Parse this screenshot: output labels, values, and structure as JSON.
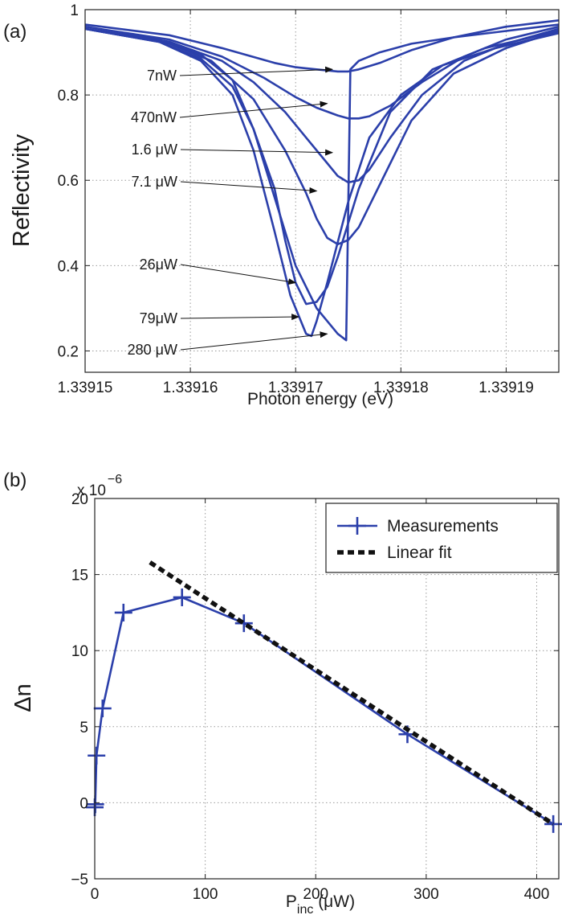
{
  "colors": {
    "series": "#2b3faa",
    "fit": "#111111",
    "grid": "#9a9a9a",
    "axis": "#222222"
  },
  "chart_data": [
    {
      "panel_label": "(a)",
      "type": "line",
      "xlabel": "Photon energy (eV)",
      "ylabel": "Reflectivity",
      "xlim": [
        1.33915,
        1.339195
      ],
      "ylim": [
        0.15,
        1.0
      ],
      "xticks": [
        1.33915,
        1.33916,
        1.33917,
        1.33918,
        1.33919
      ],
      "xtick_labels": [
        "1.33915",
        "1.33916",
        "1.33917",
        "1.33918",
        "1.33919"
      ],
      "yticks": [
        0.2,
        0.4,
        0.6,
        0.8,
        1.0
      ],
      "ytick_labels": [
        "0.2",
        "0.4",
        "0.6",
        "0.8",
        "1"
      ],
      "grid": true,
      "series": [
        {
          "name": "7nW",
          "x": [
            1.33915,
            1.339158,
            1.339163,
            1.339168,
            1.33917,
            1.339172,
            1.339174,
            1.339175,
            1.339176,
            1.339178,
            1.339181,
            1.339185,
            1.33919,
            1.339195
          ],
          "y": [
            0.965,
            0.94,
            0.91,
            0.875,
            0.865,
            0.86,
            0.855,
            0.855,
            0.86,
            0.875,
            0.905,
            0.935,
            0.96,
            0.975
          ]
        },
        {
          "name": "470nW",
          "x": [
            1.33915,
            1.339158,
            1.339163,
            1.339167,
            1.33917,
            1.339172,
            1.339174,
            1.339175,
            1.339176,
            1.339177,
            1.339179,
            1.339182,
            1.339186,
            1.33919,
            1.339195
          ],
          "y": [
            0.96,
            0.93,
            0.89,
            0.84,
            0.795,
            0.77,
            0.752,
            0.745,
            0.745,
            0.75,
            0.775,
            0.83,
            0.89,
            0.93,
            0.96
          ]
        },
        {
          "name": "1.6 μW",
          "x": [
            1.33915,
            1.339158,
            1.339163,
            1.339166,
            1.339169,
            1.339171,
            1.339173,
            1.339174,
            1.339175,
            1.339176,
            1.339177,
            1.339179,
            1.339182,
            1.339186,
            1.33919,
            1.339195
          ],
          "y": [
            0.955,
            0.925,
            0.88,
            0.83,
            0.76,
            0.7,
            0.64,
            0.61,
            0.595,
            0.6,
            0.625,
            0.7,
            0.8,
            0.88,
            0.92,
            0.955
          ]
        },
        {
          "name": "7.1 μW",
          "x": [
            1.33915,
            1.339158,
            1.339162,
            1.339166,
            1.339169,
            1.339171,
            1.339172,
            1.339173,
            1.339174,
            1.339175,
            1.339176,
            1.339178,
            1.339181,
            1.339185,
            1.33919,
            1.339195
          ],
          "y": [
            0.955,
            0.92,
            0.88,
            0.79,
            0.67,
            0.57,
            0.51,
            0.465,
            0.45,
            0.46,
            0.49,
            0.59,
            0.74,
            0.85,
            0.91,
            0.95
          ]
        },
        {
          "name": "26μW",
          "x": [
            1.33915,
            1.339157,
            1.339161,
            1.339164,
            1.339166,
            1.339168,
            1.339169,
            1.33917,
            1.339171,
            1.339172,
            1.339173,
            1.339174,
            1.339176,
            1.339179,
            1.339183,
            1.339188,
            1.339195
          ],
          "y": [
            0.955,
            0.925,
            0.885,
            0.82,
            0.72,
            0.58,
            0.46,
            0.36,
            0.31,
            0.315,
            0.35,
            0.42,
            0.58,
            0.76,
            0.86,
            0.91,
            0.95
          ]
        },
        {
          "name": "79μW",
          "x": [
            1.33915,
            1.339157,
            1.339161,
            1.339164,
            1.339166,
            1.339168,
            1.3391695,
            1.339171,
            1.3391715,
            1.339172,
            1.339173,
            1.339175,
            1.339177,
            1.33918,
            1.339184,
            1.339189,
            1.339195
          ],
          "y": [
            0.955,
            0.925,
            0.88,
            0.8,
            0.67,
            0.48,
            0.33,
            0.24,
            0.235,
            0.27,
            0.36,
            0.55,
            0.7,
            0.8,
            0.87,
            0.91,
            0.945
          ]
        },
        {
          "name": "280 μW",
          "x": [
            1.33915,
            1.339157,
            1.339161,
            1.339164,
            1.339166,
            1.339168,
            1.33917,
            1.339172,
            1.339174,
            1.3391748,
            1.3391752,
            1.339176,
            1.339178,
            1.339181,
            1.339185,
            1.33919,
            1.339195
          ],
          "y": [
            0.955,
            0.93,
            0.895,
            0.835,
            0.72,
            0.56,
            0.4,
            0.3,
            0.24,
            0.225,
            0.86,
            0.88,
            0.9,
            0.92,
            0.935,
            0.95,
            0.965
          ]
        }
      ],
      "annotations": [
        {
          "text": "7nW",
          "x": 1.3391735,
          "y": 0.86
        },
        {
          "text": "470nW",
          "x": 1.339173,
          "y": 0.78
        },
        {
          "text": "1.6 μW",
          "x": 1.3391735,
          "y": 0.665
        },
        {
          "text": "7.1 μW",
          "x": 1.339172,
          "y": 0.575
        },
        {
          "text": "26μW",
          "x": 1.33917,
          "y": 0.36
        },
        {
          "text": "79μW",
          "x": 1.3391703,
          "y": 0.28
        },
        {
          "text": "280 μW",
          "x": 1.339173,
          "y": 0.24
        }
      ]
    },
    {
      "panel_label": "(b)",
      "type": "line",
      "xlabel": "P",
      "xlabel_sub": "inc",
      "xlabel_unit": " (μW)",
      "ylabel": "Δn",
      "exponent_label": "x 10",
      "exponent_power": "−6",
      "xlim": [
        0,
        420
      ],
      "ylim": [
        -5,
        20
      ],
      "xticks": [
        0,
        100,
        200,
        300,
        400
      ],
      "xtick_labels": [
        "0",
        "100",
        "200",
        "300",
        "400"
      ],
      "yticks": [
        -5,
        0,
        5,
        10,
        15,
        20
      ],
      "ytick_labels": [
        "−5",
        "0",
        "5",
        "10",
        "15",
        "20"
      ],
      "grid": true,
      "legend_position": "top-right",
      "series": [
        {
          "name": "Measurements",
          "style": "solid-with-plus-markers",
          "x": [
            0.007,
            0.47,
            1.6,
            7.1,
            26,
            79,
            135,
            283,
            415
          ],
          "y": [
            -0.3,
            -0.1,
            3.1,
            6.2,
            12.5,
            13.5,
            11.8,
            4.5,
            -1.4
          ]
        },
        {
          "name": "Linear fit",
          "style": "dashed",
          "x": [
            50,
            415
          ],
          "y": [
            15.8,
            -1.4
          ]
        }
      ]
    }
  ]
}
